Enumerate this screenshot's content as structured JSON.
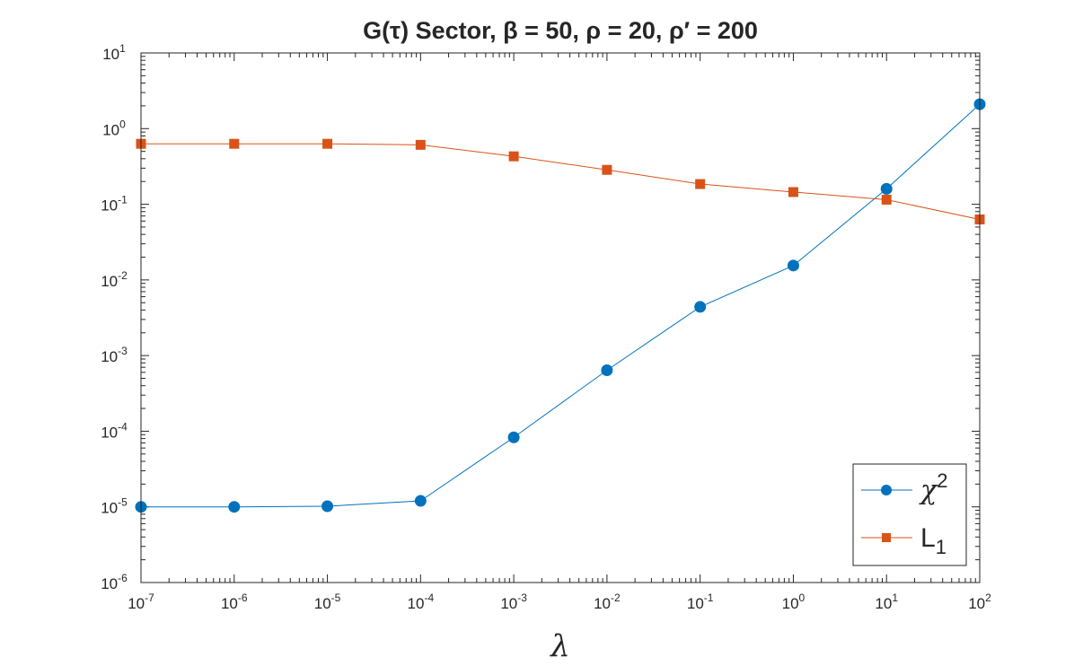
{
  "chart_data": {
    "type": "line",
    "title": "G(τ) Sector, β = 50, ρ = 20, ρ′ = 200",
    "xlabel": "λ",
    "ylabel": "",
    "xscale": "log",
    "yscale": "log",
    "xlim": [
      1e-07,
      100
    ],
    "ylim": [
      1e-06,
      10
    ],
    "grid": false,
    "legend_position": "bottom-right",
    "x_tick_exponents": [
      "-7",
      "-6",
      "-5",
      "-4",
      "-3",
      "-2",
      "-1",
      "0",
      "1",
      "2"
    ],
    "y_tick_exponents": [
      "-6",
      "-5",
      "-4",
      "-3",
      "-2",
      "-1",
      "0",
      "1"
    ],
    "tick_base": "10",
    "x": [
      1e-07,
      1e-06,
      1e-05,
      0.0001,
      0.001,
      0.01,
      0.1,
      1,
      10,
      100
    ],
    "series": [
      {
        "name": "χ²",
        "legend_base": "χ",
        "legend_sup": "2",
        "color": "#0072BD",
        "marker": "circle",
        "values": [
          1e-05,
          1e-05,
          1.02e-05,
          1.2e-05,
          8.3e-05,
          0.00064,
          0.0044,
          0.0155,
          0.16,
          2.1
        ]
      },
      {
        "name": "L₁",
        "legend_base": "L",
        "legend_sub": "1",
        "color": "#D95319",
        "marker": "square",
        "values": [
          0.63,
          0.63,
          0.63,
          0.61,
          0.43,
          0.285,
          0.185,
          0.145,
          0.115,
          0.063
        ]
      }
    ]
  }
}
